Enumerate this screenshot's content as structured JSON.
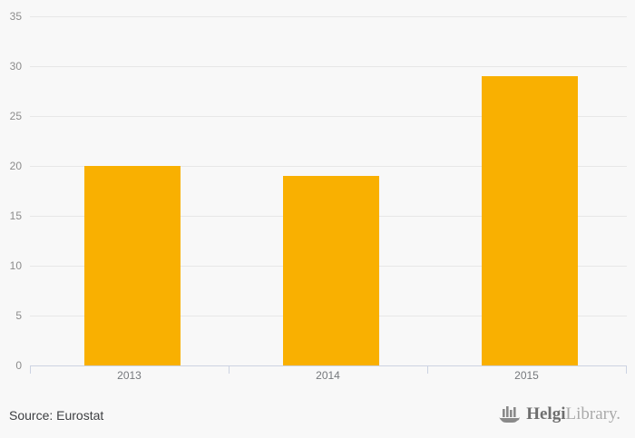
{
  "chart_data": {
    "type": "bar",
    "categories": [
      "2013",
      "2014",
      "2015"
    ],
    "values": [
      20,
      19,
      29
    ],
    "title": "",
    "xlabel": "",
    "ylabel": "",
    "ylim": [
      0,
      35
    ],
    "ytick_step": 5,
    "yticks": [
      0,
      5,
      10,
      15,
      20,
      25,
      30,
      35
    ],
    "grid": true,
    "legend": "none",
    "bar_color": "#f9b001",
    "gridline_color": "#e7e7e7",
    "axis_line_color": "#ccd3e2",
    "background_color": "#f8f8f8"
  },
  "footer": {
    "source_label": "Source: Eurostat",
    "logo": {
      "icon": "ship-bar-chart-icon",
      "brand_primary": "Helgi",
      "brand_secondary": "Library."
    }
  }
}
